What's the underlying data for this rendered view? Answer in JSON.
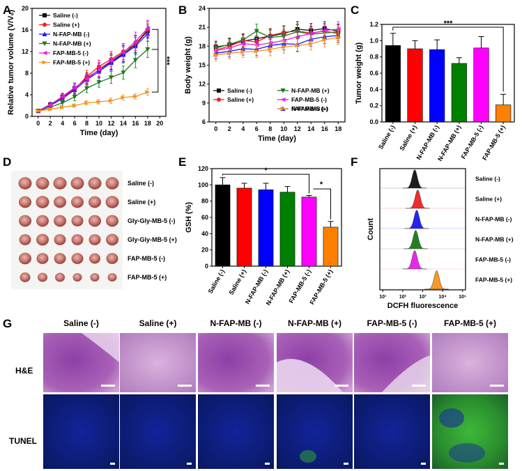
{
  "colors": {
    "black": "#111111",
    "red": "#ee2222",
    "blue": "#1a1aee",
    "green": "#1a7a1a",
    "magenta": "#e61ee6",
    "orange": "#f7931e"
  },
  "chart_data": [
    {
      "panel": "A",
      "type": "line",
      "xlabel": "Time (day)",
      "ylabel": "Relative tumor volume (V/V₀)",
      "xlim": [
        -1,
        21
      ],
      "ylim": [
        0,
        20
      ],
      "xticks": [
        0,
        2,
        4,
        6,
        8,
        10,
        12,
        14,
        16,
        18,
        20
      ],
      "yticks": [
        0,
        4,
        8,
        12,
        16,
        20
      ],
      "x": [
        0,
        2,
        4,
        6,
        8,
        10,
        12,
        14,
        16,
        18
      ],
      "significance": "***",
      "series": [
        {
          "name": "Saline (-)",
          "color": "#111111",
          "values": [
            1,
            2.2,
            3.6,
            5.2,
            7.1,
            8.6,
            10.1,
            11.6,
            13.3,
            15.8
          ],
          "errors": [
            0.1,
            0.4,
            0.6,
            0.9,
            1.0,
            1.2,
            1.4,
            1.5,
            1.6,
            1.3
          ]
        },
        {
          "name": "Saline (+)",
          "color": "#ee2222",
          "values": [
            1,
            2.1,
            3.5,
            5.0,
            7.4,
            9.2,
            10.6,
            12.0,
            13.4,
            16.1
          ],
          "errors": [
            0.1,
            0.4,
            0.6,
            0.8,
            1.1,
            1.2,
            1.4,
            1.5,
            1.6,
            1.5
          ]
        },
        {
          "name": "N-FAP-MB (-)",
          "color": "#1a1aee",
          "values": [
            1,
            2.0,
            3.3,
            4.9,
            6.8,
            8.3,
            9.9,
            11.4,
            13.0,
            15.3
          ],
          "errors": [
            0.1,
            0.4,
            0.6,
            0.9,
            1.0,
            1.2,
            1.4,
            1.5,
            1.6,
            1.4
          ]
        },
        {
          "name": "N-FAP-MB (+)",
          "color": "#1a7a1a",
          "values": [
            1,
            1.7,
            2.5,
            3.6,
            5.2,
            6.3,
            7.2,
            8.1,
            10.4,
            12.4
          ],
          "errors": [
            0.1,
            0.3,
            0.5,
            0.7,
            0.8,
            0.9,
            1.1,
            1.2,
            1.4,
            1.5
          ]
        },
        {
          "name": "FAP-MB-5 (-)",
          "color": "#e61ee6",
          "values": [
            1,
            2.1,
            3.7,
            5.3,
            6.9,
            8.7,
            10.3,
            11.8,
            13.9,
            16.3
          ],
          "errors": [
            0.1,
            0.4,
            0.6,
            0.9,
            1.0,
            1.3,
            1.4,
            1.6,
            1.7,
            1.5
          ]
        },
        {
          "name": "FAP-MB-5 (+)",
          "color": "#f7931e",
          "values": [
            1,
            1.3,
            1.7,
            2.0,
            2.5,
            2.7,
            2.9,
            3.5,
            3.7,
            4.5
          ],
          "errors": [
            0.1,
            0.2,
            0.3,
            0.3,
            0.4,
            0.4,
            0.5,
            0.5,
            0.5,
            0.6
          ]
        }
      ]
    },
    {
      "panel": "B",
      "type": "line",
      "xlabel": "Time (day)",
      "ylabel": "Body weight (g)",
      "xlim": [
        -1,
        19
      ],
      "ylim": [
        6,
        24
      ],
      "xticks": [
        0,
        2,
        4,
        6,
        8,
        10,
        12,
        14,
        16,
        18
      ],
      "yticks": [
        6,
        9,
        12,
        15,
        18,
        21,
        24
      ],
      "x": [
        0,
        2,
        4,
        6,
        8,
        10,
        12,
        14,
        16,
        18
      ],
      "series": [
        {
          "name": "Saline (-)",
          "color": "#111111",
          "values": [
            17.9,
            18.2,
            18.8,
            19.2,
            19.6,
            20.0,
            20.7,
            20.5,
            20.8,
            20.4
          ],
          "errors": [
            0.9,
            1.0,
            1.0,
            1.1,
            1.1,
            1.1,
            1.2,
            1.1,
            1.1,
            1.1
          ]
        },
        {
          "name": "Saline (+)",
          "color": "#ee2222",
          "values": [
            17.4,
            18.0,
            18.9,
            18.7,
            19.7,
            20.2,
            20.4,
            20.1,
            20.4,
            20.0
          ],
          "errors": [
            0.9,
            1.0,
            1.0,
            1.0,
            1.1,
            1.1,
            1.1,
            1.1,
            1.1,
            1.1
          ]
        },
        {
          "name": "N-FAP-MB (-)",
          "color": "#1a1aee",
          "values": [
            16.9,
            17.2,
            17.6,
            17.5,
            18.1,
            18.4,
            18.3,
            19.1,
            19.5,
            19.7
          ],
          "errors": [
            0.9,
            0.9,
            1.0,
            1.0,
            1.0,
            1.0,
            1.1,
            1.1,
            1.1,
            1.1
          ]
        },
        {
          "name": "N-FAP-MB (+)",
          "color": "#1a7a1a",
          "values": [
            17.7,
            18.3,
            19.0,
            20.4,
            19.4,
            19.6,
            20.3,
            19.9,
            20.1,
            20.3
          ],
          "errors": [
            0.9,
            1.0,
            1.0,
            1.1,
            1.1,
            1.1,
            1.1,
            1.1,
            1.1,
            1.1
          ]
        },
        {
          "name": "FAP-MB-5 (-)",
          "color": "#e61ee6",
          "values": [
            17.3,
            17.7,
            18.4,
            18.2,
            18.5,
            18.9,
            19.5,
            20.0,
            20.5,
            20.7
          ],
          "errors": [
            0.9,
            1.0,
            1.0,
            1.0,
            1.0,
            1.1,
            1.1,
            1.1,
            1.1,
            1.2
          ]
        },
        {
          "name": "FAP-MB-5 (+)",
          "color": "#f7931e",
          "values": [
            16.6,
            16.9,
            17.1,
            17.2,
            17.5,
            17.9,
            18.1,
            18.4,
            19.0,
            19.4
          ],
          "errors": [
            0.9,
            0.9,
            0.9,
            1.0,
            1.0,
            1.0,
            1.0,
            1.0,
            1.1,
            1.1
          ]
        }
      ]
    },
    {
      "panel": "C",
      "type": "bar",
      "ylabel": "Tumor weight (g)",
      "ylim": [
        0,
        1.2
      ],
      "yticks": [
        0.0,
        0.2,
        0.4,
        0.6,
        0.8,
        1.0,
        1.2
      ],
      "categories": [
        "Saline (-)",
        "Saline (+)",
        "N-FAP-MB (-)",
        "N-FAP-MB (+)",
        "FAP-MB-5 (-)",
        "FAP-MB-5 (+)"
      ],
      "values": [
        0.94,
        0.9,
        0.89,
        0.72,
        0.91,
        0.21
      ],
      "errors": [
        0.15,
        0.1,
        0.12,
        0.07,
        0.14,
        0.13
      ],
      "colors": [
        "#000000",
        "#ff0000",
        "#0000ff",
        "#008000",
        "#ff00ff",
        "#ff8000"
      ],
      "significance": "***"
    },
    {
      "panel": "E",
      "type": "bar",
      "ylabel": "GSH (%)",
      "ylim": [
        0,
        120
      ],
      "yticks": [
        0,
        20,
        40,
        60,
        80,
        100,
        120
      ],
      "categories": [
        "Saline (-)",
        "Saline (+)",
        "N-FAP-MB (-)",
        "N-FAP-MB (+)",
        "FAP-MB-5 (-)",
        "FAP-MB-5 (+)"
      ],
      "values": [
        100,
        96,
        94,
        91,
        85,
        48
      ],
      "errors": [
        9,
        6,
        8,
        7,
        2,
        7
      ],
      "colors": [
        "#000000",
        "#ff0000",
        "#0000ff",
        "#008000",
        "#ff00ff",
        "#ff8000"
      ],
      "significance": [
        "*",
        "*"
      ]
    },
    {
      "panel": "F",
      "type": "area",
      "xlabel": "DCFH fluorescence",
      "ylabel": "Count",
      "xticks": [
        "10¹",
        "10²",
        "10³",
        "10⁴",
        "10⁵"
      ],
      "series": [
        {
          "name": "Saline (-)",
          "color": "#111111",
          "peak_log10": 2.6
        },
        {
          "name": "Saline (+)",
          "color": "#ee2222",
          "peak_log10": 2.75
        },
        {
          "name": "N-FAP-MB (-)",
          "color": "#1a1aee",
          "peak_log10": 2.7
        },
        {
          "name": "N-FAP-MB (+)",
          "color": "#1a7a1a",
          "peak_log10": 2.65
        },
        {
          "name": "FAP-MB-5 (-)",
          "color": "#e61ee6",
          "peak_log10": 2.6
        },
        {
          "name": "FAP-MB-5 (+)",
          "color": "#f7931e",
          "peak_log10": 3.7
        }
      ]
    }
  ],
  "panel_letters": {
    "a": "A",
    "b": "B",
    "c": "C",
    "d": "D",
    "e": "E",
    "f": "F",
    "g": "G"
  },
  "panel_d": {
    "rows": [
      "Saline (-)",
      "Saline (+)",
      "Gly-Gly-MB-5 (-)",
      "Gly-Gly-MB-5 (+)",
      "FAP-MB-5  (-)",
      "FAP-MB-5 (+)"
    ]
  },
  "panel_g": {
    "columns": [
      "Saline (-)",
      "Saline (+)",
      "N-FAP-MB (-)",
      "N-FAP-MB (+)",
      "FAP-MB-5 (-)",
      "FAP-MB-5 (+)"
    ],
    "rows": [
      "H&E",
      "TUNEL"
    ]
  }
}
